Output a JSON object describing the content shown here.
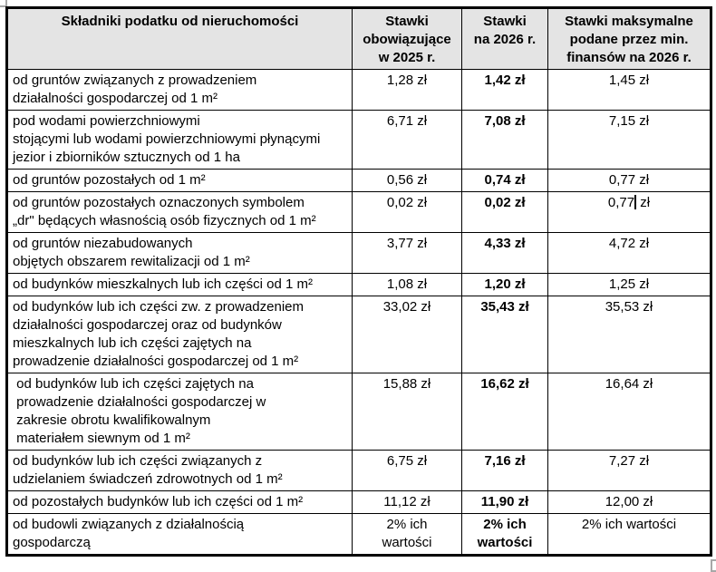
{
  "colors": {
    "header_bg": "#e4e4e4",
    "border": "#000000",
    "handle": "#a8a8a8",
    "cursor": "#000000",
    "background": "#ffffff",
    "text": "#000000"
  },
  "table": {
    "headers": [
      {
        "label": "Składniki podatku od nieruchomości"
      },
      {
        "label": "Stawki\nobowiązujące\nw 2025 r."
      },
      {
        "label": "Stawki\nna 2026 r."
      },
      {
        "label": "Stawki maksymalne\npodane przez min.\nfinansów na 2026 r."
      }
    ],
    "rows": [
      {
        "label": "od gruntów związanych z prowadzeniem\ndziałalności gospodarczej od 1 m²",
        "rate_2025": "1,28 zł",
        "rate_2026": "1,42 zł",
        "rate_max": "1,45 zł"
      },
      {
        "label": "pod wodami powierzchniowymi\nstojącymi lub wodami powierzchniowymi płynącymi\njezior i zbiorników sztucznych od 1 ha",
        "rate_2025": "6,71 zł",
        "rate_2026": "7,08 zł",
        "rate_max": "7,15 zł"
      },
      {
        "label": "od gruntów pozostałych od 1 m²",
        "rate_2025": "0,56 zł",
        "rate_2026": "0,74 zł",
        "rate_max": "0,77 zł"
      },
      {
        "label": "od gruntów pozostałych oznaczonych symbolem\n„dr\" będących własnością osób fizycznych od 1 m²",
        "rate_2025": "0,02 zł",
        "rate_2026": "0,02 zł",
        "rate_max": "0,77 zł"
      },
      {
        "label": "od gruntów niezabudowanych\nobjętych obszarem rewitalizacji od 1 m²",
        "rate_2025": "3,77 zł",
        "rate_2026": "4,33 zł",
        "rate_max": "4,72 zł"
      },
      {
        "label": "od budynków mieszkalnych lub ich części od 1 m²",
        "rate_2025": "1,08 zł",
        "rate_2026": "1,20 zł",
        "rate_max": "1,25 zł"
      },
      {
        "label": "od budynków lub ich części zw. z prowadzeniem\ndziałalności gospodarczej oraz od budynków\nmieszkalnych lub ich części zajętych na\nprowadzenie działalności gospodarczej od 1 m²",
        "rate_2025": "33,02 zł",
        "rate_2026": "35,43 zł",
        "rate_max": "35,53 zł"
      },
      {
        "label": " od budynków lub ich części zajętych na\n prowadzenie działalności gospodarczej w\n zakresie obrotu kwalifikowalnym\n materiałem siewnym od 1 m²",
        "rate_2025": "15,88 zł",
        "rate_2026": "16,62 zł",
        "rate_max": "16,64 zł"
      },
      {
        "label": "od budynków lub ich części związanych z\nudzielaniem świadczeń zdrowotnych od 1 m²",
        "rate_2025": "6,75 zł",
        "rate_2026": "7,16 zł",
        "rate_max": "7,27 zł"
      },
      {
        "label": "od pozostałych budynków lub ich części od 1 m²",
        "rate_2025": "11,12 zł",
        "rate_2026": "11,90 zł",
        "rate_max": "12,00 zł"
      },
      {
        "label": "od budowli związanych z działalnością\ngospodarczą",
        "rate_2025": "2% ich\nwartości",
        "rate_2026": "2% ich\nwartości",
        "rate_max": "2% ich wartości"
      }
    ]
  },
  "text_cursor": {
    "row_index": 3,
    "field": "rate_max",
    "before": "0,77",
    "after": " zł"
  }
}
